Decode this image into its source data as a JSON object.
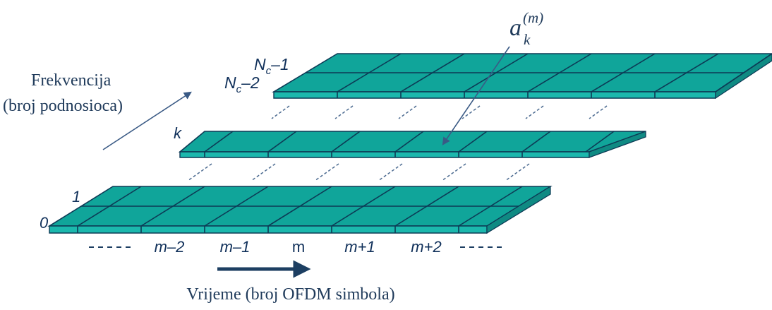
{
  "frequency_label": [
    "Frekvencija",
    "(broj podnosioca)"
  ],
  "time_label": "Vrijeme (broj OFDM simbola)",
  "symbol_label": {
    "base": "a",
    "sub": "k",
    "sup": "(m)"
  },
  "row_labels": {
    "nc_minus_1": {
      "base": "N",
      "sub": "c",
      "rest": "–1"
    },
    "nc_minus_2": {
      "base": "N",
      "sub": "c",
      "rest": "–2"
    },
    "k": "k",
    "one": "1",
    "zero": "0"
  },
  "time_ticks": [
    "m–2",
    "m–1",
    "m",
    "m+1",
    "m+2"
  ],
  "colors": {
    "cell_top": "#10a59a",
    "cell_front": "#1bb8ad",
    "cell_side": "#0f8a83",
    "grid": "#0d3a55",
    "arrow": "#1d3f62"
  }
}
